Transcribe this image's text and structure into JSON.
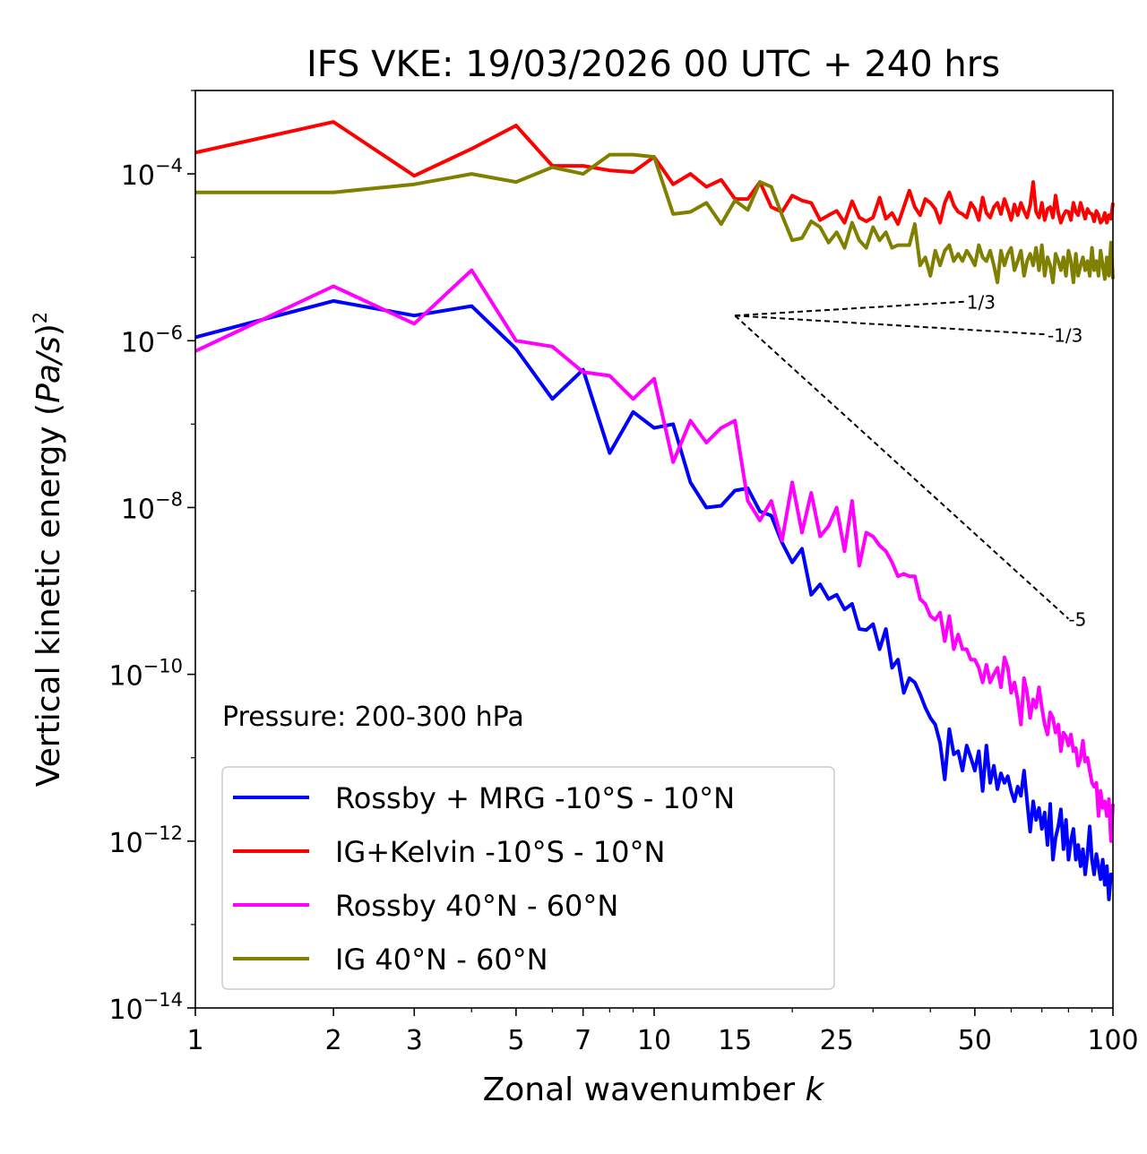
{
  "chart_data": {
    "type": "line",
    "title": "IFS VKE: 19/03/2026 00 UTC + 240 hrs",
    "xlabel_text": "Zonal wavenumber ",
    "xlabel_var": "k",
    "ylabel_text": "Vertical kinetic energy (",
    "ylabel_var": "Pa/s",
    "ylabel_close": ")",
    "ylabel_exp": "2",
    "xscale": "log",
    "yscale": "log",
    "xlim": [
      1,
      100
    ],
    "ylim": [
      1e-14,
      0.001
    ],
    "x_ticks": [
      {
        "value": 1,
        "label": "1"
      },
      {
        "value": 2,
        "label": "2"
      },
      {
        "value": 3,
        "label": "3"
      },
      {
        "value": 5,
        "label": "5"
      },
      {
        "value": 7,
        "label": "7"
      },
      {
        "value": 10,
        "label": "10"
      },
      {
        "value": 15,
        "label": "15"
      },
      {
        "value": 25,
        "label": "25"
      },
      {
        "value": 50,
        "label": "50"
      },
      {
        "value": 100,
        "label": "100"
      }
    ],
    "y_ticks": [
      {
        "value": -14,
        "base": "10",
        "exp": "−14"
      },
      {
        "value": -12,
        "base": "10",
        "exp": "−12"
      },
      {
        "value": -10,
        "base": "10",
        "exp": "−10"
      },
      {
        "value": -8,
        "base": "10",
        "exp": "−8"
      },
      {
        "value": -6,
        "base": "10",
        "exp": "−6"
      },
      {
        "value": -4,
        "base": "10",
        "exp": "−4"
      }
    ],
    "annotation": "Pressure: 200-300 hPa",
    "legend_position": "lower-left",
    "reference_slopes": [
      {
        "label": "1/3",
        "slope": 0.3333,
        "x0": 15,
        "y0": 2e-06,
        "x1": 48
      },
      {
        "label": "-1/3",
        "slope": -0.3333,
        "x0": 15,
        "y0": 2e-06,
        "x1": 72
      },
      {
        "label": "-5",
        "slope": -5,
        "x0": 15,
        "y0": 2e-06,
        "x1": 80
      }
    ],
    "series": [
      {
        "name": "Rossby + MRG -10°S - 10°N",
        "color": "#0000ff",
        "x": [
          1,
          2,
          3,
          4,
          5,
          6,
          7,
          8,
          9,
          10,
          11,
          12,
          13,
          14,
          15,
          16,
          17,
          18,
          19,
          20,
          21,
          22,
          23,
          24,
          25,
          26,
          27,
          28,
          29,
          30,
          31,
          32,
          33,
          34,
          35,
          36,
          37,
          38,
          39,
          40,
          41,
          42,
          43,
          44,
          45,
          46,
          47,
          48,
          49,
          50,
          51,
          52,
          53,
          54,
          55,
          56,
          57,
          58,
          59,
          60,
          61,
          62,
          63,
          64,
          65,
          66,
          67,
          68,
          69,
          70,
          71,
          72,
          73,
          74,
          75,
          76,
          77,
          78,
          79,
          80,
          81,
          82,
          83,
          84,
          85,
          86,
          87,
          88,
          89,
          90,
          91,
          92,
          93,
          94,
          95,
          96,
          97,
          98,
          99,
          100
        ],
        "y": [
          1.1e-06,
          3e-06,
          2e-06,
          2.6e-06,
          8e-07,
          2e-07,
          4.5e-07,
          4.5e-08,
          1.4e-07,
          9e-08,
          1e-07,
          2e-08,
          1e-08,
          1.05e-08,
          1.6e-08,
          1.7e-08,
          9e-09,
          8e-09,
          3.8e-09,
          2.2e-09,
          3.2e-09,
          9e-10,
          1.2e-09,
          8e-10,
          9e-10,
          6e-10,
          7e-10,
          3.5e-10,
          3.4e-10,
          4e-10,
          2e-10,
          3.5e-10,
          1.2e-10,
          1.5e-10,
          6e-11,
          9e-11,
          8e-11,
          5.8e-11,
          4e-11,
          3e-11,
          2.5e-11,
          1.5e-11,
          5.5e-12,
          2.2e-11,
          1.1e-11,
          1.2e-11,
          7e-12,
          1.4e-11,
          1e-11,
          7e-12,
          1.2e-11,
          4e-12,
          1.4e-11,
          5e-12,
          8e-12,
          4.2e-12,
          6.5e-12,
          5e-12,
          6e-12,
          4e-12,
          3e-12,
          4.5e-12,
          3.5e-12,
          7e-12,
          3e-12,
          1.3e-12,
          3e-12,
          1.8e-12,
          2.5e-12,
          1.4e-12,
          2.2e-12,
          9e-13,
          2.8e-12,
          6e-13,
          1.1e-12,
          1.5e-12,
          2.4e-12,
          8e-13,
          1.8e-12,
          6e-13,
          1e-12,
          1.4e-12,
          6e-13,
          9e-13,
          5e-13,
          8e-13,
          4e-13,
          7e-13,
          1.5e-12,
          6e-13,
          4e-13,
          7e-13,
          5e-13,
          3.5e-13,
          6e-13,
          3e-13,
          5e-13,
          2e-13,
          4e-13,
          4e-13
        ]
      },
      {
        "name": "IG+Kelvin -10°S - 10°N",
        "color": "#ff0000",
        "x": [
          1,
          2,
          3,
          4,
          5,
          6,
          7,
          8,
          9,
          10,
          11,
          12,
          13,
          14,
          15,
          16,
          17,
          18,
          19,
          20,
          21,
          22,
          23,
          24,
          25,
          26,
          27,
          28,
          29,
          30,
          31,
          32,
          33,
          34,
          35,
          36,
          37,
          38,
          39,
          40,
          41,
          42,
          43,
          44,
          45,
          46,
          47,
          48,
          49,
          50,
          51,
          52,
          53,
          54,
          55,
          56,
          57,
          58,
          59,
          60,
          61,
          62,
          63,
          64,
          65,
          66,
          67,
          68,
          69,
          70,
          71,
          72,
          73,
          74,
          75,
          76,
          77,
          78,
          79,
          80,
          81,
          82,
          83,
          84,
          85,
          86,
          87,
          88,
          89,
          90,
          91,
          92,
          93,
          94,
          95,
          96,
          97,
          98,
          99,
          100
        ],
        "y": [
          0.00018,
          0.00042,
          9.5e-05,
          0.0002,
          0.00038,
          0.000125,
          0.000125,
          0.00011,
          0.000105,
          0.00016,
          7.5e-05,
          0.0001,
          7e-05,
          8.5e-05,
          5e-05,
          5e-05,
          8e-05,
          4e-05,
          3.5e-05,
          5.5e-05,
          4.8e-05,
          4.5e-05,
          2.8e-05,
          3.2e-05,
          3.6e-05,
          2.6e-05,
          4.7e-05,
          3e-05,
          2.7e-05,
          3e-05,
          5.2e-05,
          2.9e-05,
          3.4e-05,
          2.5e-05,
          4e-05,
          6.3e-05,
          4e-05,
          3.2e-05,
          5e-05,
          4.5e-05,
          3.8e-05,
          2.6e-05,
          4.5e-05,
          6e-05,
          4.2e-05,
          3.5e-05,
          3.3e-05,
          3e-05,
          4.5e-05,
          3.8e-05,
          2.8e-05,
          5.2e-05,
          3.4e-05,
          3e-05,
          4e-05,
          4.5e-05,
          3.3e-05,
          5e-05,
          3.8e-05,
          2.8e-05,
          4.3e-05,
          3.2e-05,
          4.5e-05,
          3.6e-05,
          3e-05,
          4.2e-05,
          8e-05,
          3.5e-05,
          3e-05,
          4.5e-05,
          2.8e-05,
          3.8e-05,
          4e-05,
          3e-05,
          5.5e-05,
          3.4e-05,
          2.6e-05,
          3.2e-05,
          3.6e-05,
          3.5e-05,
          2.8e-05,
          4.5e-05,
          3.5e-05,
          3.2e-05,
          4.5e-05,
          3.6e-05,
          2.9e-05,
          3.8e-05,
          3.4e-05,
          3.3e-05,
          2.7e-05,
          3.6e-05,
          3.2e-05,
          2.6e-05,
          2.8e-05,
          3.4e-05,
          2.6e-05,
          3.2e-05,
          2.9e-05,
          4.5e-05
        ]
      },
      {
        "name": "Rossby 40°N - 60°N",
        "color": "#ff00ff",
        "x": [
          1,
          2,
          3,
          4,
          5,
          6,
          7,
          8,
          9,
          10,
          11,
          12,
          13,
          14,
          15,
          16,
          17,
          18,
          19,
          20,
          21,
          22,
          23,
          24,
          25,
          26,
          27,
          28,
          29,
          30,
          31,
          32,
          33,
          34,
          35,
          36,
          37,
          38,
          39,
          40,
          41,
          42,
          43,
          44,
          45,
          46,
          47,
          48,
          49,
          50,
          51,
          52,
          53,
          54,
          55,
          56,
          57,
          58,
          59,
          60,
          61,
          62,
          63,
          64,
          65,
          66,
          67,
          68,
          69,
          70,
          71,
          72,
          73,
          74,
          75,
          76,
          77,
          78,
          79,
          80,
          81,
          82,
          83,
          84,
          85,
          86,
          87,
          88,
          89,
          90,
          91,
          92,
          93,
          94,
          95,
          96,
          97,
          98,
          99,
          100
        ],
        "y": [
          7.5e-07,
          4.5e-06,
          1.6e-06,
          7e-06,
          1e-06,
          8.5e-07,
          4.2e-07,
          3.8e-07,
          2e-07,
          3.5e-07,
          3.5e-08,
          1.1e-07,
          6e-08,
          9e-08,
          1.1e-07,
          1.2e-08,
          7e-09,
          1.2e-08,
          4e-09,
          2e-08,
          5e-09,
          1.5e-08,
          4.5e-09,
          6e-09,
          1e-08,
          3e-09,
          1.2e-08,
          2e-09,
          5e-09,
          4.5e-09,
          3.5e-09,
          3e-09,
          2.2e-09,
          1.5e-09,
          1.6e-09,
          1.5e-09,
          1.5e-09,
          8e-10,
          7e-10,
          5e-10,
          4.5e-10,
          5.5e-10,
          2.5e-10,
          5e-10,
          2e-10,
          3e-10,
          2e-10,
          2e-10,
          1.5e-10,
          1.5e-10,
          1.2e-10,
          8e-11,
          1.3e-10,
          8e-11,
          1e-10,
          1.2e-10,
          7e-11,
          1.6e-10,
          1.2e-10,
          6e-11,
          8e-11,
          5e-11,
          2.5e-11,
          9e-11,
          6e-11,
          3e-11,
          5e-11,
          4e-11,
          7e-11,
          4e-11,
          2.5e-11,
          1.9e-11,
          3.5e-11,
          3e-11,
          2e-11,
          2.5e-11,
          1.2e-11,
          2e-11,
          1.8e-11,
          1.4e-11,
          1.9e-11,
          1.2e-11,
          1.3e-11,
          8e-12,
          1e-11,
          1.6e-11,
          9e-12,
          1e-11,
          7e-12,
          5e-12,
          4.5e-12,
          5e-12,
          2e-12,
          4e-12,
          2.5e-12,
          3e-12,
          2e-12,
          3.2e-12,
          1e-12,
          2.8e-12
        ]
      },
      {
        "name": "IG 40°N - 60°N",
        "color": "#808000",
        "x": [
          1,
          2,
          3,
          4,
          5,
          6,
          7,
          8,
          9,
          10,
          11,
          12,
          13,
          14,
          15,
          16,
          17,
          18,
          19,
          20,
          21,
          22,
          23,
          24,
          25,
          26,
          27,
          28,
          29,
          30,
          31,
          32,
          33,
          34,
          35,
          36,
          37,
          38,
          39,
          40,
          41,
          42,
          43,
          44,
          45,
          46,
          47,
          48,
          49,
          50,
          51,
          52,
          53,
          54,
          55,
          56,
          57,
          58,
          59,
          60,
          61,
          62,
          63,
          64,
          65,
          66,
          67,
          68,
          69,
          70,
          71,
          72,
          73,
          74,
          75,
          76,
          77,
          78,
          79,
          80,
          81,
          82,
          83,
          84,
          85,
          86,
          87,
          88,
          89,
          90,
          91,
          92,
          93,
          94,
          95,
          96,
          97,
          98,
          99,
          100
        ],
        "y": [
          6e-05,
          6e-05,
          7.5e-05,
          0.0001,
          8e-05,
          0.00012,
          0.0001,
          0.00017,
          0.00017,
          0.00016,
          3.3e-05,
          3.5e-05,
          4.5e-05,
          2.5e-05,
          4.8e-05,
          3.7e-05,
          8e-05,
          7e-05,
          3.2e-05,
          1.6e-05,
          1.7e-05,
          2.7e-05,
          2.3e-05,
          1.5e-05,
          2e-05,
          1.3e-05,
          2.6e-05,
          1.6e-05,
          1.3e-05,
          2.3e-05,
          1.6e-05,
          2e-05,
          1.3e-05,
          1.4e-05,
          1.4e-05,
          1.4e-05,
          2.5e-05,
          8e-06,
          1e-05,
          6e-06,
          1.2e-05,
          8e-06,
          1.2e-05,
          1.4e-05,
          9e-06,
          1.1e-05,
          9e-06,
          1.2e-05,
          1e-05,
          8e-06,
          1.4e-05,
          1e-05,
          9e-06,
          1.2e-05,
          8e-06,
          5e-06,
          1.2e-05,
          8e-06,
          1.1e-05,
          1.3e-05,
          7e-06,
          9e-06,
          1.2e-05,
          6e-06,
          9e-06,
          1.1e-05,
          8e-06,
          1.3e-05,
          7e-06,
          1.4e-05,
          6e-06,
          1e-05,
          8e-06,
          5e-06,
          1.1e-05,
          9e-06,
          7e-06,
          1e-05,
          6e-06,
          1.2e-05,
          9e-06,
          5e-06,
          1.1e-05,
          6e-06,
          8e-06,
          1e-05,
          7e-06,
          9e-06,
          6e-06,
          1.3e-05,
          7e-06,
          9e-06,
          6e-06,
          1.2e-05,
          8e-06,
          5.5e-06,
          1e-05,
          6e-06,
          1.5e-05,
          5.5e-06
        ]
      }
    ]
  }
}
